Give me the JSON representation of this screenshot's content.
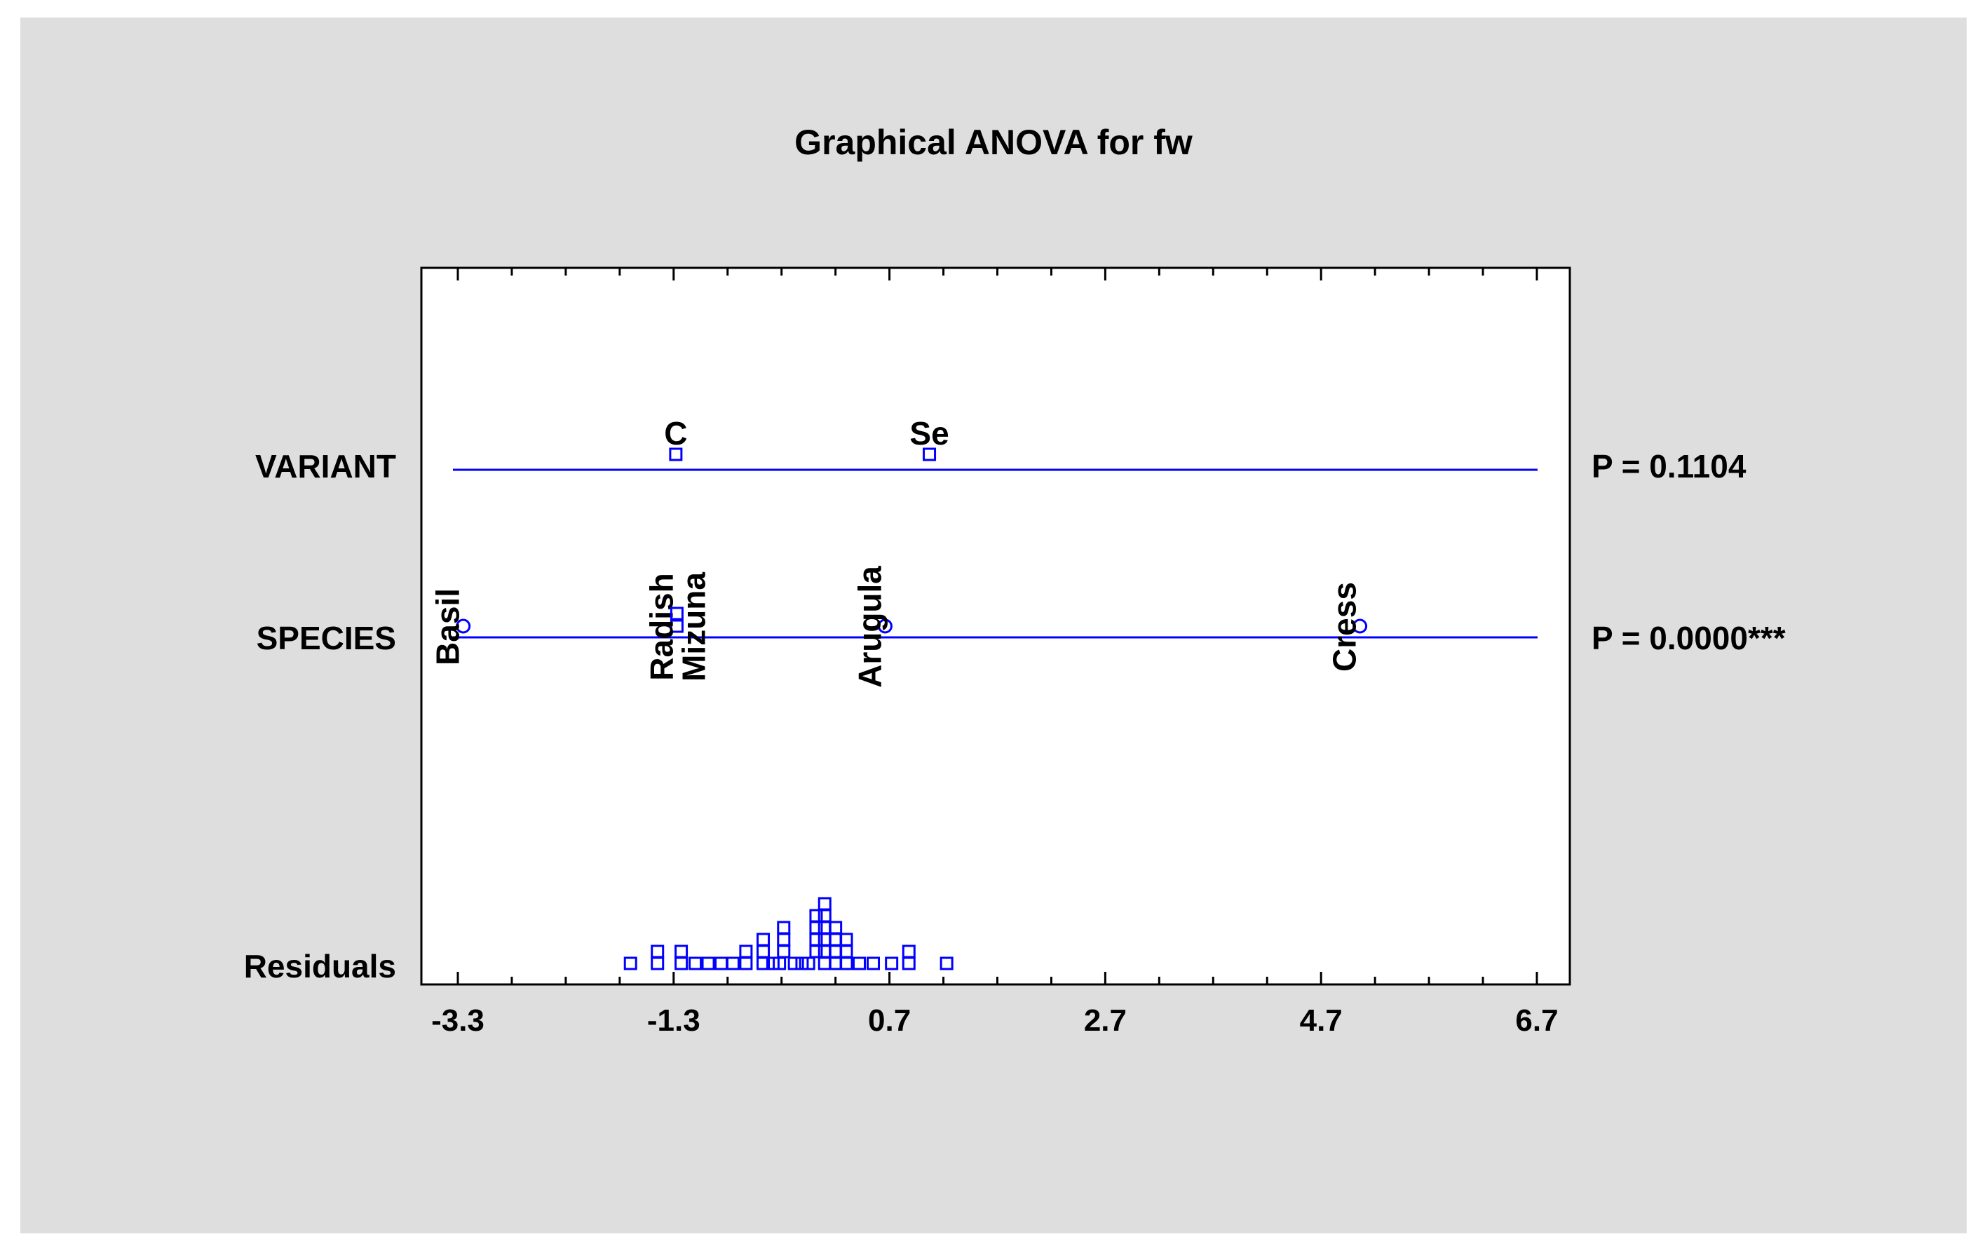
{
  "chart_data": {
    "type": "scatter",
    "title": "Graphical ANOVA for fw",
    "xlabel": "",
    "ylabel": "",
    "xlim": [
      -3.3,
      6.7
    ],
    "xticks": [
      "-3.3",
      "-1.3",
      "0.7",
      "2.7",
      "4.7",
      "6.7"
    ],
    "grid": false,
    "colors": {
      "marker": "#0000ff",
      "line": "#0000ff",
      "background": "#dedede",
      "plot": "#ffffff"
    },
    "rows": [
      {
        "name": "VARIANT",
        "p_value": "P = 0.1104",
        "marker": "square",
        "label_orientation": "horizontal",
        "points": [
          {
            "label": "C",
            "x": -1.28
          },
          {
            "label": "Se",
            "x": 1.07
          }
        ]
      },
      {
        "name": "SPECIES",
        "p_value": "P = 0.0000***",
        "marker": "circle",
        "label_orientation": "vertical",
        "points": [
          {
            "label": "Basil",
            "x": -3.25,
            "marker": "circle"
          },
          {
            "label": "Radish",
            "x": -1.27,
            "marker": "square"
          },
          {
            "label": "Mizuna",
            "x": -1.27,
            "marker": "square"
          },
          {
            "label": "Arugula",
            "x": 0.66,
            "marker": "circle"
          },
          {
            "label": "Cress",
            "x": 5.06,
            "marker": "circle"
          }
        ]
      }
    ],
    "residuals": {
      "name": "Residuals",
      "values": [
        -1.7,
        -1.45,
        -1.45,
        -1.23,
        -1.23,
        -1.1,
        -0.98,
        -0.86,
        -0.75,
        -0.63,
        -0.63,
        -0.47,
        -0.47,
        -0.47,
        -0.38,
        -0.32,
        -0.28,
        -0.28,
        -0.28,
        -0.18,
        -0.11,
        -0.05,
        0.02,
        0.02,
        0.02,
        0.02,
        0.1,
        0.1,
        0.1,
        0.1,
        0.1,
        0.1,
        0.2,
        0.2,
        0.2,
        0.2,
        0.3,
        0.3,
        0.3,
        0.42,
        0.55,
        0.72,
        0.88,
        0.88,
        1.23
      ]
    }
  }
}
